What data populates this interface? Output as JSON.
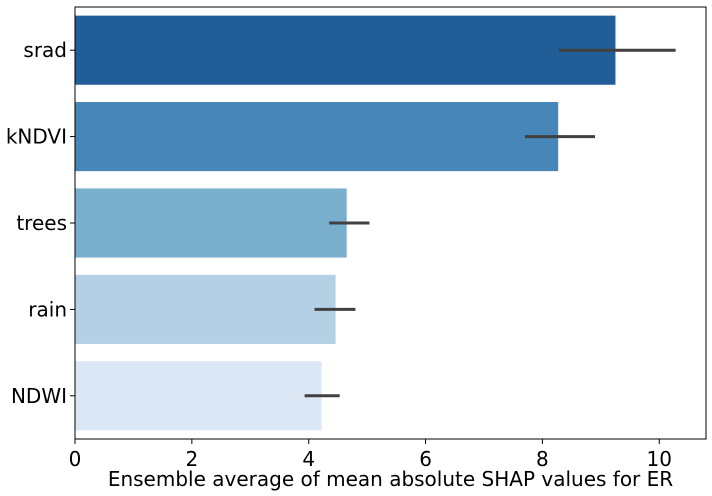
{
  "chart_data": {
    "type": "bar",
    "orientation": "horizontal",
    "categories": [
      "srad",
      "kNDVI",
      "trees",
      "rain",
      "NDWI"
    ],
    "values": [
      9.25,
      8.27,
      4.65,
      4.46,
      4.22
    ],
    "error_low": [
      8.28,
      7.7,
      4.35,
      4.1,
      3.93
    ],
    "error_high": [
      10.28,
      8.9,
      5.04,
      4.8,
      4.53
    ],
    "bar_colors": [
      "#215d96",
      "#4686b8",
      "#79aecd",
      "#b4d0e4",
      "#dbe7f4"
    ],
    "errorbar_color": "#404040",
    "xlabel": "Ensemble average of mean absolute SHAP values for ER",
    "ylabel": "",
    "title": "",
    "xlim": [
      0,
      10.8
    ],
    "xticks": [
      0,
      2,
      4,
      6,
      8,
      10
    ],
    "xtick_labels": [
      "0",
      "2",
      "4",
      "6",
      "8",
      "10"
    ],
    "grid": false,
    "legend": "none"
  }
}
